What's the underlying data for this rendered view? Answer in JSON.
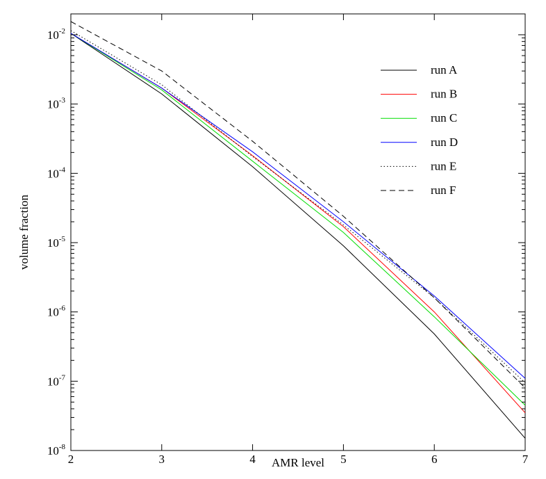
{
  "chart_data": {
    "type": "line",
    "xlabel": "AMR level",
    "ylabel": "volume fraction",
    "y_scale": "log",
    "xlim": [
      2,
      7
    ],
    "ylim": [
      1e-08,
      0.02
    ],
    "x_ticks": [
      2,
      3,
      4,
      5,
      6,
      7
    ],
    "y_ticks": [
      {
        "mantissa": "10",
        "exponent": "-8",
        "value": 1e-08
      },
      {
        "mantissa": "10",
        "exponent": "-7",
        "value": 1e-07
      },
      {
        "mantissa": "10",
        "exponent": "-6",
        "value": 1e-06
      },
      {
        "mantissa": "10",
        "exponent": "-5",
        "value": 1e-05
      },
      {
        "mantissa": "10",
        "exponent": "-4",
        "value": 0.0001
      },
      {
        "mantissa": "10",
        "exponent": "-3",
        "value": 0.001
      },
      {
        "mantissa": "10",
        "exponent": "-2",
        "value": 0.01
      }
    ],
    "grid": false,
    "legend_position": "top-right",
    "x": [
      2,
      3,
      4,
      5,
      6,
      7
    ],
    "series": [
      {
        "name": "run A",
        "color": "#000000",
        "dash": "solid",
        "values": [
          0.0105,
          0.0014,
          0.000125,
          9e-06,
          4.8e-07,
          1.5e-08
        ]
      },
      {
        "name": "run B",
        "color": "#ff0000",
        "dash": "solid",
        "values": [
          0.0105,
          0.0017,
          0.00018,
          1.7e-05,
          1e-06,
          3.5e-08
        ]
      },
      {
        "name": "run C",
        "color": "#00dd00",
        "dash": "solid",
        "values": [
          0.0105,
          0.0016,
          0.00015,
          1.4e-05,
          8.5e-07,
          4.5e-08
        ]
      },
      {
        "name": "run D",
        "color": "#0000ff",
        "dash": "solid",
        "values": [
          0.0105,
          0.0017,
          0.000205,
          2e-05,
          1.7e-06,
          1.1e-07
        ]
      },
      {
        "name": "run E",
        "color": "#000000",
        "dash": "dotted",
        "values": [
          0.0115,
          0.0019,
          0.000175,
          1.8e-05,
          1.6e-06,
          9.5e-08
        ]
      },
      {
        "name": "run F",
        "color": "#000000",
        "dash": "dashed",
        "values": [
          0.0155,
          0.003,
          0.00029,
          2.4e-05,
          1.6e-06,
          8e-08
        ]
      }
    ]
  }
}
